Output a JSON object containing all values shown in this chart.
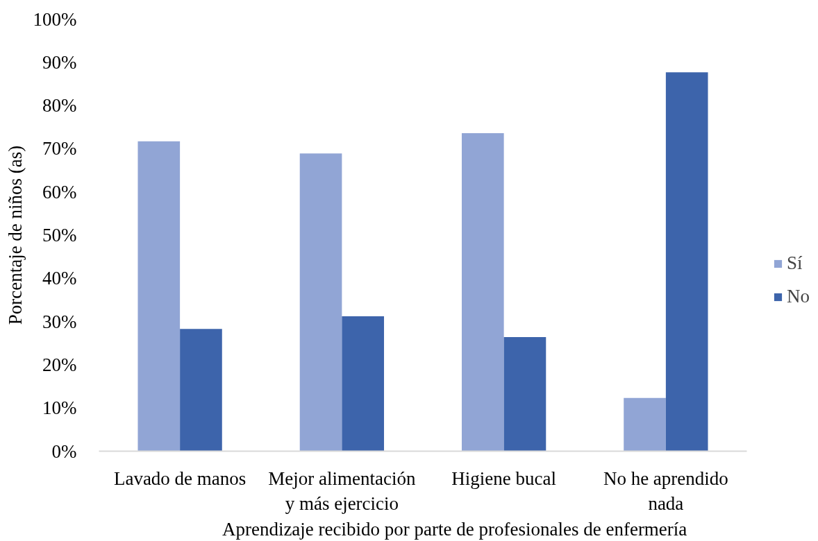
{
  "chart_data": {
    "type": "bar",
    "xlabel": "Aprendizaje recibido  por parte de profesionales de enfermería",
    "ylabel": "Porcentaje de niños (as)",
    "categories": [
      "Lavado de manos",
      "Mejor alimentación y más ejercicio",
      "Higiene bucal",
      "No he aprendido nada"
    ],
    "series": [
      {
        "name": "Sí",
        "color": "#91a5d5",
        "values": [
          71.7,
          68.9,
          73.6,
          12.3
        ]
      },
      {
        "name": "No",
        "color": "#3d64ab",
        "values": [
          28.3,
          31.2,
          26.4,
          87.7
        ]
      }
    ],
    "ylim": [
      0,
      100
    ],
    "yticks": [
      {
        "value": 0,
        "label": "0%"
      },
      {
        "value": 10,
        "label": "10%"
      },
      {
        "value": 20,
        "label": "20%"
      },
      {
        "value": 30,
        "label": "30%"
      },
      {
        "value": 40,
        "label": "40%"
      },
      {
        "value": 50,
        "label": "50%"
      },
      {
        "value": 60,
        "label": "60%"
      },
      {
        "value": 70,
        "label": "70%"
      },
      {
        "value": 80,
        "label": "80%"
      },
      {
        "value": 90,
        "label": "90%"
      },
      {
        "value": 100,
        "label": "100%"
      }
    ],
    "grid": false,
    "legend": "right"
  }
}
